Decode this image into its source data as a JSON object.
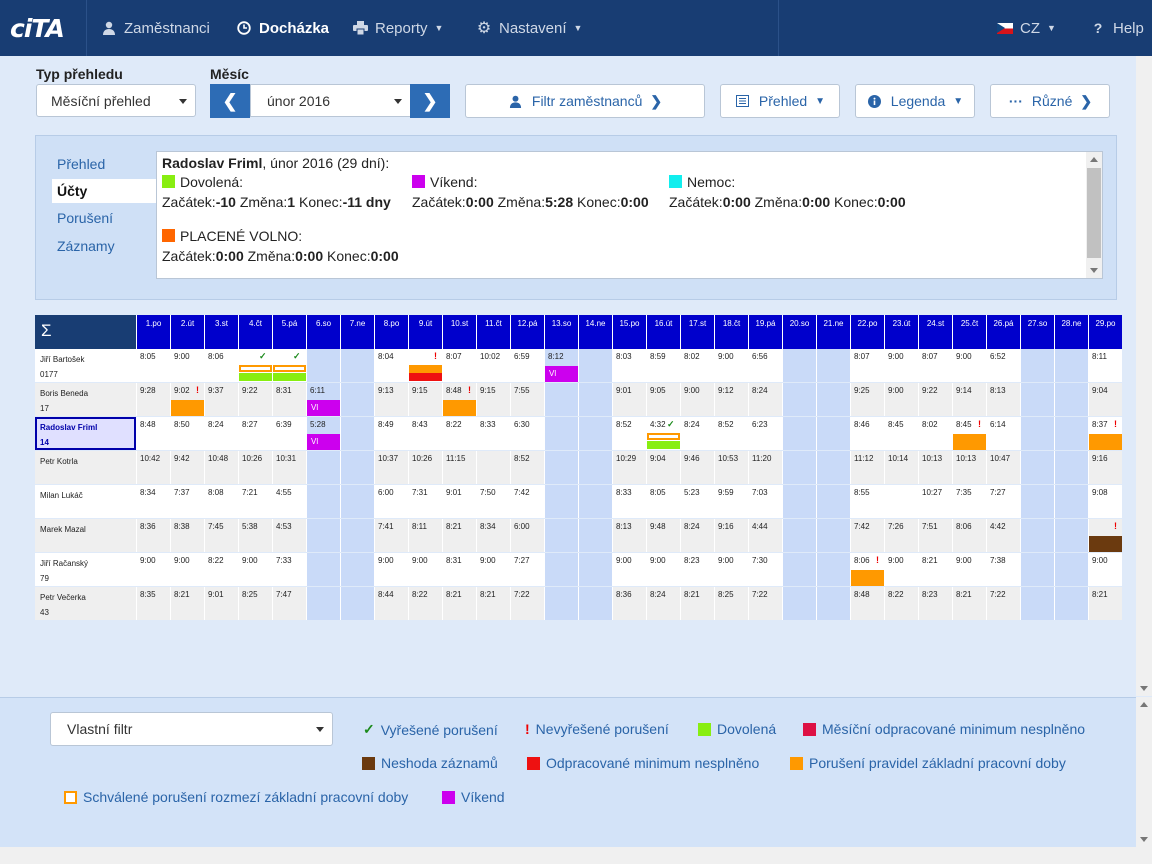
{
  "nav": {
    "logo": "ciTA",
    "items": [
      {
        "label": "Zaměstnanci",
        "icon": "user-icon"
      },
      {
        "label": "Docházka",
        "icon": "clock-icon"
      },
      {
        "label": "Reporty",
        "icon": "printer-icon"
      },
      {
        "label": "Nastavení",
        "icon": "gear-icon"
      }
    ],
    "language": "CZ",
    "help": "Help"
  },
  "toolbar": {
    "type_label": "Typ přehledu",
    "type_value": "Měsíční přehled",
    "month_label": "Měsíc",
    "month_value": "únor 2016",
    "filter_button": "Filtr zaměstnanců",
    "overview_button": "Přehled",
    "legend_button": "Legenda",
    "misc_button": "Různé"
  },
  "panel": {
    "tabs": [
      "Přehled",
      "Účty",
      "Porušení",
      "Záznamy"
    ],
    "active_tab": "Účty",
    "header": {
      "name": "Radoslav Friml",
      "rest": ", únor 2016 (29 dní):"
    },
    "accounts": [
      {
        "name": "Dovolená:",
        "color": "#88ee11",
        "start": "-10",
        "change": "1",
        "end": "-11 dny"
      },
      {
        "name": "Víkend:",
        "color": "#cc00ee",
        "start": "0:00",
        "change": "5:28",
        "end": "0:00"
      },
      {
        "name": "Nemoc:",
        "color": "#11eeee",
        "start": "0:00",
        "change": "0:00",
        "end": "0:00"
      },
      {
        "name": "PLACENÉ VOLNO:",
        "color": "#ff6600",
        "start": "0:00",
        "change": "0:00",
        "end": "0:00"
      }
    ],
    "words": {
      "start": "Začátek:",
      "change": "Změna:",
      "end": "Konec:"
    }
  },
  "grid": {
    "sigma": "Σ",
    "days": [
      "1.po",
      "2.út",
      "3.st",
      "4.čt",
      "5.pá",
      "6.so",
      "7.ne",
      "8.po",
      "9.út",
      "10.st",
      "11.čt",
      "12.pá",
      "13.so",
      "14.ne",
      "15.po",
      "16.út",
      "17.st",
      "18.čt",
      "19.pá",
      "20.so",
      "21.ne",
      "22.po",
      "23.út",
      "24.st",
      "25.čt",
      "26.pá",
      "27.so",
      "28.ne",
      "29.po"
    ],
    "weekend_days": [
      5,
      6,
      12,
      13,
      19,
      20,
      26,
      27
    ],
    "employees": [
      {
        "name": "Jiří Bartošek",
        "id": "0177",
        "times": [
          "8:05",
          "9:00",
          "8:06",
          "",
          "",
          "",
          "",
          "8:04",
          "",
          "8:07",
          "10:02",
          "6:59",
          "8:12",
          "",
          "8:03",
          "8:59",
          "8:02",
          "9:00",
          "6:56",
          "",
          "",
          "8:07",
          "9:00",
          "8:07",
          "9:00",
          "6:52",
          "",
          "",
          "8:11"
        ]
      },
      {
        "name": "Boris Beneda",
        "id": "17",
        "times": [
          "9:28",
          "9:02",
          "9:37",
          "9:22",
          "8:31",
          "6:11",
          "",
          "9:13",
          "9:15",
          "8:48",
          "9:15",
          "7:55",
          "",
          "",
          "9:01",
          "9:05",
          "9:00",
          "9:12",
          "8:24",
          "",
          "",
          "9:25",
          "9:00",
          "9:22",
          "9:14",
          "8:13",
          "",
          "",
          "9:04"
        ]
      },
      {
        "name": "Radoslav Friml",
        "id": "14",
        "times": [
          "8:48",
          "8:50",
          "8:24",
          "8:27",
          "6:39",
          "5:28",
          "",
          "8:49",
          "8:43",
          "8:22",
          "8:33",
          "6:30",
          "",
          "",
          "8:52",
          "4:32",
          "8:24",
          "8:52",
          "6:23",
          "",
          "",
          "8:46",
          "8:45",
          "8:02",
          "8:45",
          "6:14",
          "",
          "",
          "8:37"
        ]
      },
      {
        "name": "Petr Kotrla",
        "id": "",
        "times": [
          "10:42",
          "9:42",
          "10:48",
          "10:26",
          "10:31",
          "",
          "",
          "10:37",
          "10:26",
          "11:15",
          "",
          "8:52",
          "",
          "",
          "10:29",
          "9:04",
          "9:46",
          "10:53",
          "11:20",
          "",
          "",
          "11:12",
          "10:14",
          "10:13",
          "10:13",
          "10:47",
          "",
          "",
          "9:16"
        ]
      },
      {
        "name": "Milan Lukáč",
        "id": "",
        "times": [
          "8:34",
          "7:37",
          "8:08",
          "7:21",
          "4:55",
          "",
          "",
          "6:00",
          "7:31",
          "9:01",
          "7:50",
          "7:42",
          "",
          "",
          "8:33",
          "8:05",
          "5:23",
          "9:59",
          "7:03",
          "",
          "",
          "8:55",
          "",
          "10:27",
          "7:35",
          "7:27",
          "",
          "",
          "9:08"
        ]
      },
      {
        "name": "Marek Mazal",
        "id": "",
        "times": [
          "8:36",
          "8:38",
          "7:45",
          "5:38",
          "4:53",
          "",
          "",
          "7:41",
          "8:11",
          "8:21",
          "8:34",
          "6:00",
          "",
          "",
          "8:13",
          "9:48",
          "8:24",
          "9:16",
          "4:44",
          "",
          "",
          "7:42",
          "7:26",
          "7:51",
          "8:06",
          "4:42",
          "",
          "",
          ""
        ]
      },
      {
        "name": "Jiří Račanský",
        "id": "79",
        "times": [
          "9:00",
          "9:00",
          "8:22",
          "9:00",
          "7:33",
          "",
          "",
          "9:00",
          "9:00",
          "8:31",
          "9:00",
          "7:27",
          "",
          "",
          "9:00",
          "9:00",
          "8:23",
          "9:00",
          "7:30",
          "",
          "",
          "8:06",
          "9:00",
          "8:21",
          "9:00",
          "7:38",
          "",
          "",
          "9:00"
        ]
      },
      {
        "name": "Petr Večerka",
        "id": "43",
        "times": [
          "8:35",
          "8:21",
          "9:01",
          "8:25",
          "7:47",
          "",
          "",
          "8:44",
          "8:22",
          "8:21",
          "8:21",
          "7:22",
          "",
          "",
          "8:36",
          "8:24",
          "8:21",
          "8:25",
          "7:22",
          "",
          "",
          "8:48",
          "8:22",
          "8:23",
          "8:21",
          "7:22",
          "",
          "",
          "8:21"
        ]
      }
    ],
    "vl_text": "Vl",
    "check": "✓",
    "bang": "!"
  },
  "legend": {
    "filter_value": "Vlastní filtr",
    "items": [
      {
        "label": "Vyřešené porušení",
        "kind": "check",
        "color": "#1b8a1b"
      },
      {
        "label": "Nevyřešené porušení",
        "kind": "bang",
        "color": "#e00000"
      },
      {
        "label": "Dovolená",
        "kind": "swatch",
        "color": "#88ee11"
      },
      {
        "label": "Měsíční odpracované minimum nesplněno",
        "kind": "swatch",
        "color": "#dd1144"
      },
      {
        "label": "Neshoda záznamů",
        "kind": "swatch",
        "color": "#6b3a0f"
      },
      {
        "label": "Odpracované minimum nesplněno",
        "kind": "swatch",
        "color": "#ee1111"
      },
      {
        "label": "Porušení pravidel základní pracovní doby",
        "kind": "swatch",
        "color": "#ff9900"
      },
      {
        "label": "Schválené porušení rozmezí základní pracovní doby",
        "kind": "outline",
        "color": "#ff9900"
      },
      {
        "label": "Víkend",
        "kind": "swatch",
        "color": "#cc00ee"
      }
    ]
  }
}
